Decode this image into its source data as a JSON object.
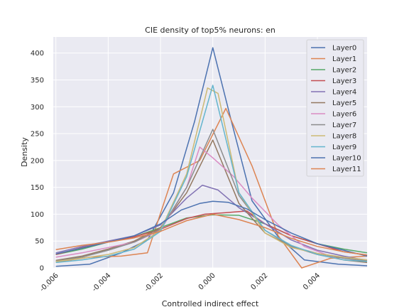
{
  "chart_data": {
    "type": "line",
    "title": "CIE density of top5% neurons: en",
    "xlabel": "Controlled indirect effect",
    "ylabel": "Density",
    "xlim": [
      -0.0061,
      0.0059
    ],
    "ylim": [
      0,
      430
    ],
    "xticks": [
      "-0.006",
      "-0.004",
      "-0.002",
      "0.000",
      "0.002",
      "0.004"
    ],
    "xtick_values": [
      -0.006,
      -0.004,
      -0.002,
      0.0,
      0.002,
      0.004
    ],
    "yticks": [
      "0",
      "50",
      "100",
      "150",
      "200",
      "250",
      "300",
      "350",
      "400"
    ],
    "ytick_values": [
      0,
      50,
      100,
      150,
      200,
      250,
      300,
      350,
      400
    ],
    "grid": true,
    "legend_position": "top-right",
    "series": [
      {
        "name": "Layer0",
        "color": "#4c72b0",
        "x": [
          -0.006,
          -0.0047,
          -0.0035,
          -0.0025,
          -0.0015,
          -0.0007,
          0.0,
          0.0007,
          0.0015,
          0.0025,
          0.0035,
          0.0048,
          0.0059
        ],
        "y": [
          3,
          7,
          28,
          52,
          140,
          272,
          410,
          275,
          125,
          58,
          15,
          7,
          4
        ]
      },
      {
        "name": "Layer1",
        "color": "#dd8452",
        "x": [
          -0.006,
          -0.0047,
          -0.0035,
          -0.0025,
          -0.0015,
          -0.0005,
          0.0005,
          0.0015,
          0.0025,
          0.0034,
          0.0045,
          0.0059
        ],
        "y": [
          11,
          20,
          22,
          28,
          175,
          200,
          297,
          190,
          60,
          0,
          18,
          22
        ]
      },
      {
        "name": "Layer2",
        "color": "#55a868",
        "x": [
          -0.006,
          -0.005,
          -0.004,
          -0.003,
          -0.002,
          -0.001,
          0.0,
          0.001,
          0.002,
          0.003,
          0.004,
          0.005,
          0.0059
        ],
        "y": [
          25,
          35,
          48,
          58,
          75,
          93,
          99,
          98,
          82,
          60,
          45,
          35,
          28
        ]
      },
      {
        "name": "Layer3",
        "color": "#c44e52",
        "x": [
          -0.006,
          -0.005,
          -0.004,
          -0.003,
          -0.002,
          -0.001,
          -0.0003,
          0.0005,
          0.0013,
          0.002,
          0.003,
          0.004,
          0.005,
          0.0059
        ],
        "y": [
          25,
          38,
          48,
          58,
          72,
          92,
          100,
          103,
          106,
          82,
          60,
          45,
          30,
          24
        ]
      },
      {
        "name": "Layer4",
        "color": "#8172b3",
        "x": [
          -0.006,
          -0.005,
          -0.004,
          -0.003,
          -0.002,
          -0.001,
          -0.0004,
          0.0002,
          0.001,
          0.002,
          0.003,
          0.004,
          0.005,
          0.0059
        ],
        "y": [
          28,
          40,
          50,
          60,
          80,
          130,
          154,
          145,
          112,
          82,
          52,
          33,
          22,
          14
        ]
      },
      {
        "name": "Layer5",
        "color": "#937860",
        "x": [
          -0.006,
          -0.005,
          -0.004,
          -0.003,
          -0.002,
          -0.001,
          0.0,
          0.001,
          0.002,
          0.003,
          0.004,
          0.005,
          0.0059
        ],
        "y": [
          14,
          22,
          35,
          50,
          75,
          140,
          238,
          120,
          65,
          40,
          25,
          15,
          10
        ]
      },
      {
        "name": "Layer6",
        "color": "#da8bc3",
        "x": [
          -0.006,
          -0.005,
          -0.004,
          -0.003,
          -0.002,
          -0.001,
          -0.0005,
          0.0,
          0.0008,
          0.0015,
          0.0025,
          0.0035,
          0.0045,
          0.0059
        ],
        "y": [
          20,
          28,
          38,
          48,
          70,
          150,
          225,
          205,
          170,
          130,
          80,
          40,
          22,
          12
        ]
      },
      {
        "name": "Layer7",
        "color": "#8c8c8c",
        "x": [
          -0.006,
          -0.005,
          -0.004,
          -0.003,
          -0.002,
          -0.001,
          0.0,
          0.001,
          0.002,
          0.003,
          0.004,
          0.005,
          0.0059
        ],
        "y": [
          13,
          20,
          33,
          48,
          72,
          150,
          258,
          135,
          70,
          40,
          27,
          18,
          13
        ]
      },
      {
        "name": "Layer8",
        "color": "#ccb974",
        "x": [
          -0.006,
          -0.005,
          -0.004,
          -0.003,
          -0.002,
          -0.001,
          -0.0002,
          0.0002,
          0.001,
          0.002,
          0.003,
          0.004,
          0.005,
          0.0059
        ],
        "y": [
          12,
          18,
          25,
          38,
          70,
          175,
          335,
          325,
          140,
          65,
          38,
          27,
          20,
          15
        ]
      },
      {
        "name": "Layer9",
        "color": "#64b5cd",
        "x": [
          -0.006,
          -0.005,
          -0.004,
          -0.003,
          -0.002,
          -0.001,
          0.0,
          0.001,
          0.002,
          0.003,
          0.004,
          0.005,
          0.0059
        ],
        "y": [
          10,
          15,
          22,
          35,
          68,
          170,
          340,
          140,
          70,
          42,
          25,
          15,
          12
        ]
      },
      {
        "name": "Layer10",
        "color": "#4c72b0",
        "x": [
          -0.006,
          -0.005,
          -0.004,
          -0.003,
          -0.002,
          -0.0012,
          -0.0005,
          0.0,
          0.0006,
          0.0013,
          0.002,
          0.003,
          0.004,
          0.005,
          0.0059
        ],
        "y": [
          26,
          37,
          48,
          60,
          82,
          108,
          120,
          124,
          122,
          110,
          90,
          65,
          45,
          33,
          22
        ]
      },
      {
        "name": "Layer11",
        "color": "#dd8452",
        "x": [
          -0.006,
          -0.005,
          -0.004,
          -0.003,
          -0.002,
          -0.001,
          0.0,
          0.001,
          0.002,
          0.003,
          0.004,
          0.005,
          0.0059
        ],
        "y": [
          34,
          42,
          48,
          56,
          68,
          88,
          100,
          90,
          75,
          55,
          40,
          30,
          24
        ]
      }
    ]
  }
}
